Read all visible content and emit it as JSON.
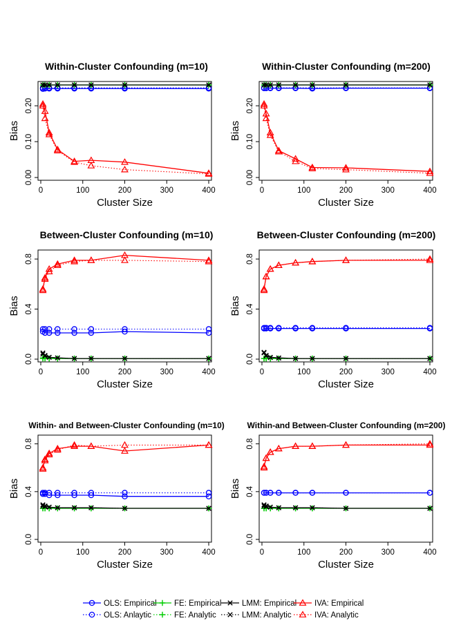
{
  "styles": {
    "OLS": {
      "color": "#0000ff",
      "marker": "circle"
    },
    "FE": {
      "color": "#00cc00",
      "marker": "plus"
    },
    "LMM": {
      "color": "#000000",
      "marker": "cross"
    },
    "IVA": {
      "color": "#ff0000",
      "marker": "triangle"
    }
  },
  "legend": {
    "items": [
      {
        "method": "OLS",
        "kind": "empirical",
        "label": "OLS: Empirical"
      },
      {
        "method": "FE",
        "kind": "empirical",
        "label": "FE: Empirical"
      },
      {
        "method": "LMM",
        "kind": "empirical",
        "label": "LMM: Empirical"
      },
      {
        "method": "IVA",
        "kind": "empirical",
        "label": "IVA: Empirical"
      },
      {
        "method": "OLS",
        "kind": "analytic",
        "label": "OLS: Anlaytic"
      },
      {
        "method": "FE",
        "kind": "analytic",
        "label": "FE: Analytic"
      },
      {
        "method": "LMM",
        "kind": "analytic",
        "label": "LMM: Analytic"
      },
      {
        "method": "IVA",
        "kind": "analytic",
        "label": "IVA: Analytic"
      }
    ]
  },
  "chart_data": [
    {
      "type": "line",
      "title": "Within-Cluster Confounding (m=10)",
      "xlabel": "Cluster Size",
      "ylabel": "Bias",
      "xlim": [
        0,
        400
      ],
      "ylim": [
        0,
        0.26
      ],
      "xticks": [
        0,
        100,
        200,
        300,
        400
      ],
      "yticks": [
        0.0,
        0.1,
        0.2
      ],
      "ytick_labels": [
        "0.00",
        "0.10",
        "0.20"
      ],
      "x": [
        5,
        10,
        20,
        40,
        80,
        120,
        200,
        400
      ],
      "series": [
        {
          "name": "OLS: Empirical",
          "method": "OLS",
          "kind": "empirical",
          "values": [
            0.247,
            0.248,
            0.248,
            0.248,
            0.248,
            0.248,
            0.248,
            0.248
          ]
        },
        {
          "name": "OLS: Anlaytic",
          "method": "OLS",
          "kind": "analytic",
          "values": [
            0.25,
            0.25,
            0.25,
            0.25,
            0.25,
            0.25,
            0.25,
            0.25
          ]
        },
        {
          "name": "FE: Empirical",
          "method": "FE",
          "kind": "empirical",
          "values": [
            0.258,
            0.258,
            0.258,
            0.258,
            0.258,
            0.258,
            0.258,
            0.258
          ]
        },
        {
          "name": "FE: Analytic",
          "method": "FE",
          "kind": "analytic",
          "values": [
            0.258,
            0.258,
            0.258,
            0.258,
            0.258,
            0.258,
            0.258,
            0.258
          ]
        },
        {
          "name": "LMM: Empirical",
          "method": "LMM",
          "kind": "empirical",
          "values": [
            0.258,
            0.258,
            0.258,
            0.258,
            0.258,
            0.258,
            0.258,
            0.258
          ]
        },
        {
          "name": "LMM: Analytic",
          "method": "LMM",
          "kind": "analytic",
          "values": [
            0.258,
            0.258,
            0.258,
            0.258,
            0.258,
            0.258,
            0.258,
            0.258
          ]
        },
        {
          "name": "IVA: Empirical",
          "method": "IVA",
          "kind": "empirical",
          "values": [
            0.205,
            0.185,
            0.125,
            0.078,
            0.045,
            0.048,
            0.043,
            0.012
          ]
        },
        {
          "name": "IVA: Analytic",
          "method": "IVA",
          "kind": "analytic",
          "values": [
            0.2,
            0.165,
            0.12,
            0.075,
            0.043,
            0.033,
            0.022,
            0.01
          ]
        }
      ]
    },
    {
      "type": "line",
      "title": "Within-Cluster Confounding (m=200)",
      "xlabel": "Cluster Size",
      "ylabel": "Bias",
      "xlim": [
        0,
        400
      ],
      "ylim": [
        0,
        0.26
      ],
      "xticks": [
        0,
        100,
        200,
        300,
        400
      ],
      "yticks": [
        0.0,
        0.1,
        0.2
      ],
      "ytick_labels": [
        "0.00",
        "0.10",
        "0.20"
      ],
      "x": [
        5,
        10,
        20,
        40,
        80,
        120,
        200,
        400
      ],
      "series": [
        {
          "name": "OLS: Empirical",
          "method": "OLS",
          "kind": "empirical",
          "values": [
            0.249,
            0.249,
            0.249,
            0.249,
            0.249,
            0.248,
            0.249,
            0.249
          ]
        },
        {
          "name": "OLS: Anlaytic",
          "method": "OLS",
          "kind": "analytic",
          "values": [
            0.25,
            0.25,
            0.25,
            0.25,
            0.25,
            0.25,
            0.25,
            0.25
          ]
        },
        {
          "name": "FE: Empirical",
          "method": "FE",
          "kind": "empirical",
          "values": [
            0.258,
            0.258,
            0.258,
            0.258,
            0.258,
            0.258,
            0.258,
            0.258
          ]
        },
        {
          "name": "FE: Analytic",
          "method": "FE",
          "kind": "analytic",
          "values": [
            0.258,
            0.258,
            0.258,
            0.258,
            0.258,
            0.258,
            0.258,
            0.258
          ]
        },
        {
          "name": "LMM: Empirical",
          "method": "LMM",
          "kind": "empirical",
          "values": [
            0.258,
            0.258,
            0.258,
            0.258,
            0.258,
            0.258,
            0.258,
            0.258
          ]
        },
        {
          "name": "LMM: Analytic",
          "method": "LMM",
          "kind": "analytic",
          "values": [
            0.258,
            0.258,
            0.258,
            0.258,
            0.258,
            0.258,
            0.258,
            0.258
          ]
        },
        {
          "name": "IVA: Empirical",
          "method": "IVA",
          "kind": "empirical",
          "values": [
            0.205,
            0.178,
            0.125,
            0.075,
            0.052,
            0.028,
            0.027,
            0.017
          ]
        },
        {
          "name": "IVA: Analytic",
          "method": "IVA",
          "kind": "analytic",
          "values": [
            0.2,
            0.165,
            0.118,
            0.072,
            0.045,
            0.025,
            0.022,
            0.012
          ]
        }
      ]
    },
    {
      "type": "line",
      "title": "Between-Cluster Confounding (m=10)",
      "xlabel": "Cluster Size",
      "ylabel": "Bias",
      "xlim": [
        0,
        400
      ],
      "ylim": [
        0,
        0.85
      ],
      "xticks": [
        0,
        100,
        200,
        300,
        400
      ],
      "yticks": [
        0.0,
        0.4,
        0.8
      ],
      "ytick_labels": [
        "0.0",
        "0.4",
        "0.8"
      ],
      "x": [
        5,
        10,
        20,
        40,
        80,
        120,
        200,
        400
      ],
      "series": [
        {
          "name": "OLS: Empirical",
          "method": "OLS",
          "kind": "empirical",
          "values": [
            0.22,
            0.21,
            0.21,
            0.21,
            0.21,
            0.21,
            0.22,
            0.21
          ]
        },
        {
          "name": "OLS: Anlaytic",
          "method": "OLS",
          "kind": "analytic",
          "values": [
            0.24,
            0.24,
            0.24,
            0.24,
            0.24,
            0.24,
            0.24,
            0.24
          ]
        },
        {
          "name": "FE: Empirical",
          "method": "FE",
          "kind": "empirical",
          "values": [
            0.01,
            0.01,
            0.005,
            0.005,
            0.005,
            0.005,
            0.005,
            0.005
          ]
        },
        {
          "name": "FE: Analytic",
          "method": "FE",
          "kind": "analytic",
          "values": [
            0.005,
            0.005,
            0.005,
            0.005,
            0.005,
            0.005,
            0.005,
            0.005
          ]
        },
        {
          "name": "LMM: Empirical",
          "method": "LMM",
          "kind": "empirical",
          "values": [
            0.05,
            0.03,
            0.015,
            0.01,
            0.005,
            0.005,
            0.005,
            0.005
          ]
        },
        {
          "name": "LMM: Analytic",
          "method": "LMM",
          "kind": "analytic",
          "values": [
            0.04,
            0.025,
            0.015,
            0.01,
            0.005,
            0.005,
            0.005,
            0.005
          ]
        },
        {
          "name": "IVA: Empirical",
          "method": "IVA",
          "kind": "empirical",
          "values": [
            0.56,
            0.65,
            0.72,
            0.76,
            0.79,
            0.79,
            0.83,
            0.79
          ]
        },
        {
          "name": "IVA: Analytic",
          "method": "IVA",
          "kind": "analytic",
          "values": [
            0.55,
            0.64,
            0.7,
            0.75,
            0.78,
            0.79,
            0.79,
            0.78
          ]
        }
      ]
    },
    {
      "type": "line",
      "title": "Between-Cluster Confounding (m=200)",
      "xlabel": "Cluster Size",
      "ylabel": "Bias",
      "xlim": [
        0,
        400
      ],
      "ylim": [
        0,
        0.85
      ],
      "xticks": [
        0,
        100,
        200,
        300,
        400
      ],
      "yticks": [
        0.0,
        0.4,
        0.8
      ],
      "ytick_labels": [
        "0.0",
        "0.4",
        "0.8"
      ],
      "x": [
        5,
        10,
        20,
        40,
        80,
        120,
        200,
        400
      ],
      "series": [
        {
          "name": "OLS: Empirical",
          "method": "OLS",
          "kind": "empirical",
          "values": [
            0.245,
            0.245,
            0.245,
            0.245,
            0.245,
            0.245,
            0.245,
            0.245
          ]
        },
        {
          "name": "OLS: Anlaytic",
          "method": "OLS",
          "kind": "analytic",
          "values": [
            0.25,
            0.25,
            0.25,
            0.25,
            0.25,
            0.25,
            0.25,
            0.25
          ]
        },
        {
          "name": "FE: Empirical",
          "method": "FE",
          "kind": "empirical",
          "values": [
            0.005,
            0.005,
            0.005,
            0.005,
            0.005,
            0.005,
            0.005,
            0.005
          ]
        },
        {
          "name": "FE: Analytic",
          "method": "FE",
          "kind": "analytic",
          "values": [
            0.005,
            0.005,
            0.005,
            0.005,
            0.005,
            0.005,
            0.005,
            0.005
          ]
        },
        {
          "name": "LMM: Empirical",
          "method": "LMM",
          "kind": "empirical",
          "values": [
            0.055,
            0.03,
            0.015,
            0.01,
            0.005,
            0.005,
            0.005,
            0.005
          ]
        },
        {
          "name": "LMM: Analytic",
          "method": "LMM",
          "kind": "analytic",
          "values": [
            0.05,
            0.025,
            0.012,
            0.008,
            0.005,
            0.005,
            0.005,
            0.005
          ]
        },
        {
          "name": "IVA: Empirical",
          "method": "IVA",
          "kind": "empirical",
          "values": [
            0.56,
            0.66,
            0.72,
            0.75,
            0.77,
            0.78,
            0.79,
            0.79
          ]
        },
        {
          "name": "IVA: Analytic",
          "method": "IVA",
          "kind": "analytic",
          "values": [
            0.55,
            0.66,
            0.72,
            0.75,
            0.77,
            0.78,
            0.79,
            0.8
          ]
        }
      ]
    },
    {
      "type": "line",
      "title": "Within- and Between-Cluster Confounding (m=10)",
      "xlabel": "Cluster Size",
      "ylabel": "Bias",
      "xlim": [
        0,
        400
      ],
      "ylim": [
        0,
        0.85
      ],
      "xticks": [
        0,
        100,
        200,
        300,
        400
      ],
      "yticks": [
        0.0,
        0.4,
        0.8
      ],
      "ytick_labels": [
        "0.0",
        "0.4",
        "0.8"
      ],
      "x": [
        5,
        10,
        20,
        40,
        80,
        120,
        200,
        400
      ],
      "series": [
        {
          "name": "OLS: Empirical",
          "method": "OLS",
          "kind": "empirical",
          "values": [
            0.38,
            0.38,
            0.37,
            0.37,
            0.37,
            0.37,
            0.36,
            0.36
          ]
        },
        {
          "name": "OLS: Anlaytic",
          "method": "OLS",
          "kind": "analytic",
          "values": [
            0.39,
            0.39,
            0.39,
            0.39,
            0.39,
            0.39,
            0.39,
            0.39
          ]
        },
        {
          "name": "FE: Empirical",
          "method": "FE",
          "kind": "empirical",
          "values": [
            0.26,
            0.26,
            0.26,
            0.26,
            0.26,
            0.26,
            0.26,
            0.26
          ]
        },
        {
          "name": "FE: Analytic",
          "method": "FE",
          "kind": "analytic",
          "values": [
            0.26,
            0.26,
            0.26,
            0.26,
            0.26,
            0.26,
            0.26,
            0.26
          ]
        },
        {
          "name": "LMM: Empirical",
          "method": "LMM",
          "kind": "empirical",
          "values": [
            0.29,
            0.28,
            0.27,
            0.265,
            0.265,
            0.265,
            0.26,
            0.26
          ]
        },
        {
          "name": "LMM: Analytic",
          "method": "LMM",
          "kind": "analytic",
          "values": [
            0.28,
            0.275,
            0.27,
            0.265,
            0.265,
            0.265,
            0.26,
            0.26
          ]
        },
        {
          "name": "IVA: Empirical",
          "method": "IVA",
          "kind": "empirical",
          "values": [
            0.6,
            0.67,
            0.72,
            0.76,
            0.78,
            0.78,
            0.74,
            0.79
          ]
        },
        {
          "name": "IVA: Analytic",
          "method": "IVA",
          "kind": "analytic",
          "values": [
            0.59,
            0.66,
            0.71,
            0.75,
            0.79,
            0.78,
            0.79,
            0.79
          ]
        }
      ]
    },
    {
      "type": "line",
      "title": "Within-and Between-Cluster Confounding (m=200)",
      "xlabel": "Cluster Size",
      "ylabel": "Bias",
      "xlim": [
        0,
        400
      ],
      "ylim": [
        0,
        0.85
      ],
      "xticks": [
        0,
        100,
        200,
        300,
        400
      ],
      "yticks": [
        0.0,
        0.4,
        0.8
      ],
      "ytick_labels": [
        "0.0",
        "0.4",
        "0.8"
      ],
      "x": [
        5,
        10,
        20,
        40,
        80,
        120,
        200,
        400
      ],
      "series": [
        {
          "name": "OLS: Empirical",
          "method": "OLS",
          "kind": "empirical",
          "values": [
            0.39,
            0.39,
            0.39,
            0.39,
            0.39,
            0.39,
            0.39,
            0.39
          ]
        },
        {
          "name": "OLS: Anlaytic",
          "method": "OLS",
          "kind": "analytic",
          "values": [
            0.39,
            0.39,
            0.39,
            0.39,
            0.39,
            0.39,
            0.39,
            0.39
          ]
        },
        {
          "name": "FE: Empirical",
          "method": "FE",
          "kind": "empirical",
          "values": [
            0.26,
            0.26,
            0.26,
            0.26,
            0.26,
            0.26,
            0.26,
            0.26
          ]
        },
        {
          "name": "FE: Analytic",
          "method": "FE",
          "kind": "analytic",
          "values": [
            0.26,
            0.26,
            0.26,
            0.26,
            0.26,
            0.26,
            0.26,
            0.26
          ]
        },
        {
          "name": "LMM: Empirical",
          "method": "LMM",
          "kind": "empirical",
          "values": [
            0.29,
            0.28,
            0.27,
            0.265,
            0.265,
            0.265,
            0.26,
            0.26
          ]
        },
        {
          "name": "LMM: Analytic",
          "method": "LMM",
          "kind": "analytic",
          "values": [
            0.28,
            0.275,
            0.27,
            0.265,
            0.265,
            0.265,
            0.26,
            0.26
          ]
        },
        {
          "name": "IVA: Empirical",
          "method": "IVA",
          "kind": "empirical",
          "values": [
            0.61,
            0.68,
            0.73,
            0.76,
            0.78,
            0.78,
            0.79,
            0.79
          ]
        },
        {
          "name": "IVA: Analytic",
          "method": "IVA",
          "kind": "analytic",
          "values": [
            0.6,
            0.68,
            0.73,
            0.76,
            0.78,
            0.78,
            0.79,
            0.8
          ]
        }
      ]
    }
  ]
}
